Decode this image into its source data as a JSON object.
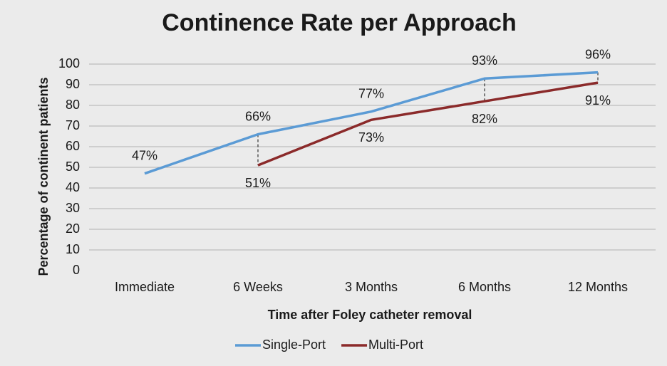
{
  "chart_data": {
    "type": "line",
    "title": "Continence Rate per Approach",
    "x_label": "Time after Foley catheter removal",
    "y_label": "Percentage of continent patients",
    "categories": [
      "Immediate",
      "6 Weeks",
      "3 Months",
      "6 Months",
      "12 Months"
    ],
    "series": [
      {
        "name": "Single-Port",
        "color": "#5b9bd5",
        "values": [
          47,
          66,
          77,
          93,
          96
        ],
        "value_labels": [
          "47%",
          "66%",
          "77%",
          "93%",
          "96%"
        ]
      },
      {
        "name": "Multi-Port",
        "color": "#8b2a2a",
        "values": [
          null,
          51,
          73,
          82,
          91
        ],
        "value_labels": [
          null,
          "51%",
          "73%",
          "82%",
          "91%"
        ]
      }
    ],
    "ylim": [
      0,
      100
    ],
    "yticks": [
      0,
      10,
      20,
      30,
      40,
      50,
      60,
      70,
      80,
      90,
      100
    ],
    "grid": true,
    "legend": "bottom"
  }
}
